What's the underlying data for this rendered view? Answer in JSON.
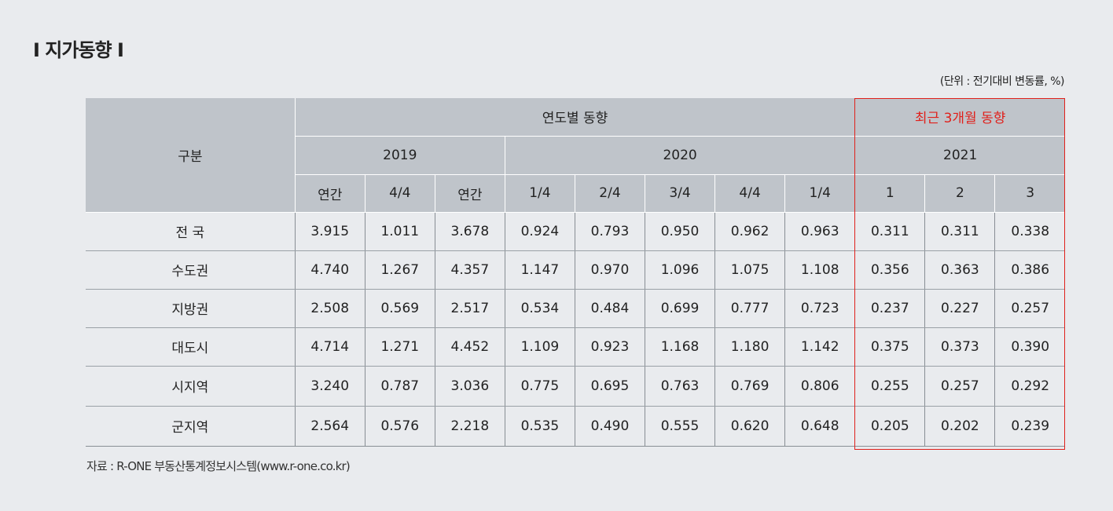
{
  "title": "I 지가동향 I",
  "unit": "(단위 : 전기대비 변동률, %)",
  "source": "자료 : R-ONE 부동산통계정보시스템(www.r-one.co.kr)",
  "colors": {
    "header_bg": "#bfc4ca",
    "highlight": "#e0201b",
    "page_bg": "#e9ebee"
  },
  "table": {
    "category_header": "구분",
    "group_annual": "연도별 동향",
    "group_recent": "최근 3개월 동향",
    "years": [
      "2019",
      "2020",
      "2021"
    ],
    "sub_headers": [
      "연간",
      "4/4",
      "연간",
      "1/4",
      "2/4",
      "3/4",
      "4/4",
      "1/4",
      "1",
      "2",
      "3"
    ],
    "rows": [
      {
        "region": "전  국",
        "values": [
          "3.915",
          "1.011",
          "3.678",
          "0.924",
          "0.793",
          "0.950",
          "0.962",
          "0.963",
          "0.311",
          "0.311",
          "0.338"
        ]
      },
      {
        "region": "수도권",
        "values": [
          "4.740",
          "1.267",
          "4.357",
          "1.147",
          "0.970",
          "1.096",
          "1.075",
          "1.108",
          "0.356",
          "0.363",
          "0.386"
        ]
      },
      {
        "region": "지방권",
        "values": [
          "2.508",
          "0.569",
          "2.517",
          "0.534",
          "0.484",
          "0.699",
          "0.777",
          "0.723",
          "0.237",
          "0.227",
          "0.257"
        ]
      },
      {
        "region": "대도시",
        "values": [
          "4.714",
          "1.271",
          "4.452",
          "1.109",
          "0.923",
          "1.168",
          "1.180",
          "1.142",
          "0.375",
          "0.373",
          "0.390"
        ]
      },
      {
        "region": "시지역",
        "values": [
          "3.240",
          "0.787",
          "3.036",
          "0.775",
          "0.695",
          "0.763",
          "0.769",
          "0.806",
          "0.255",
          "0.257",
          "0.292"
        ]
      },
      {
        "region": "군지역",
        "values": [
          "2.564",
          "0.576",
          "2.218",
          "0.535",
          "0.490",
          "0.555",
          "0.620",
          "0.648",
          "0.205",
          "0.202",
          "0.239"
        ]
      }
    ]
  }
}
